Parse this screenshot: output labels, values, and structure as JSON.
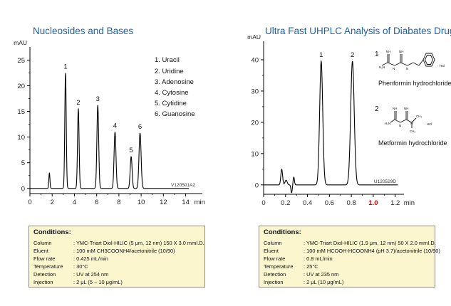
{
  "left_panel": {
    "title": "Nucleosides and Bases",
    "legend": [
      "1. Uracil",
      "2. Uridine",
      "3. Adenosine",
      "4. Cytosine",
      "5. Cytidine",
      "6. Guanosine"
    ],
    "conditions": {
      "heading": "Conditions:",
      "rows": [
        {
          "key": "Column",
          "value": ": YMC-Triart Diol-HILIC (5 μm, 12 nm) 150 X 3.0 mmI.D."
        },
        {
          "key": "Eluent",
          "value": ": 100 mM CH3COONH4/acetonitrile (10/90)"
        },
        {
          "key": "Flow rate",
          "value": ": 0.425 mL/min"
        },
        {
          "key": "Temperature",
          "value": ": 30°C"
        },
        {
          "key": "Detection",
          "value": ": UV at 254 nm"
        },
        {
          "key": "Injection",
          "value": ": 2 μL (5 ~ 10 μg/mL)"
        }
      ]
    }
  },
  "right_panel": {
    "title": "Ultra Fast UHPLC Analysis of Diabates Drugs",
    "compounds": [
      {
        "number": "1",
        "name": "Phenformin hydrochloride"
      },
      {
        "number": "2",
        "name": "Metformin hydrochloride"
      }
    ],
    "conditions": {
      "heading": "Conditions:",
      "rows": [
        {
          "key": "Column",
          "value": ": YMC-Triart Diol-HILIC (1.9 μm, 12 nm) 50 X 2.0 mmI.D."
        },
        {
          "key": "Eluent",
          "value": ": 100 mM HCOOH-HCOONH4 (pH 3.7)/acetonitrile (10/90)"
        },
        {
          "key": "Flow rate",
          "value": ": 0.8 mL/min"
        },
        {
          "key": "Temperature",
          "value": ": 25°C"
        },
        {
          "key": "Detection",
          "value": ": UV at 235 nm"
        },
        {
          "key": "Injection",
          "value": ": 2 μL (10 μg/mL)"
        }
      ]
    }
  },
  "chart_data": [
    {
      "type": "line",
      "title": "Nucleosides and Bases",
      "ylabel": "mAU",
      "xlabel": "min",
      "xlim": [
        0,
        15.5
      ],
      "ylim": [
        -1,
        27
      ],
      "x_ticks": [
        0,
        2,
        4,
        6,
        8,
        10,
        12,
        14
      ],
      "y_ticks": [
        0,
        5,
        10,
        15,
        20,
        25
      ],
      "code": "V120501A2",
      "line_color": "#000000",
      "peaks": [
        {
          "label": "",
          "rt": 1.75,
          "height": 3.0,
          "width": 0.05
        },
        {
          "label": "1",
          "rt": 3.2,
          "height": 22.5,
          "width": 0.065
        },
        {
          "label": "2",
          "rt": 4.35,
          "height": 15.5,
          "width": 0.07
        },
        {
          "label": "3",
          "rt": 6.1,
          "height": 16.2,
          "width": 0.08
        },
        {
          "label": "4",
          "rt": 7.65,
          "height": 11.0,
          "width": 0.085
        },
        {
          "label": "5",
          "rt": 9.1,
          "height": 6.2,
          "width": 0.085
        },
        {
          "label": "6",
          "rt": 9.9,
          "height": 10.8,
          "width": 0.095
        }
      ]
    },
    {
      "type": "line",
      "title": "Ultra Fast UHPLC Analysis of Diabates Drugs",
      "ylabel": "mAU",
      "xlabel": "min",
      "xlim": [
        0,
        1.28
      ],
      "ylim": [
        -3,
        45
      ],
      "x_ticks": [
        0,
        0.2,
        0.4,
        0.6,
        0.8,
        1.0,
        1.2
      ],
      "highlight_tick": {
        "value": 1.0,
        "label": "1.0",
        "color": "#d40000"
      },
      "y_ticks": [
        0,
        10,
        20,
        30,
        40
      ],
      "code": "U120529D",
      "line_color": "#000000",
      "peaks": [
        {
          "label": "",
          "rt": 0.165,
          "height": 5.0,
          "width": 0.008
        },
        {
          "label": "",
          "rt": 0.205,
          "height": 1.5,
          "width": 0.01
        },
        {
          "label": "",
          "rt": 0.255,
          "height": -2.5,
          "width": 0.006
        },
        {
          "label": "",
          "rt": 0.275,
          "height": 2.5,
          "width": 0.006
        },
        {
          "label": "1",
          "rt": 0.525,
          "height": 39.5,
          "width": 0.014
        },
        {
          "label": "2",
          "rt": 0.81,
          "height": 39.5,
          "width": 0.016
        }
      ]
    }
  ]
}
